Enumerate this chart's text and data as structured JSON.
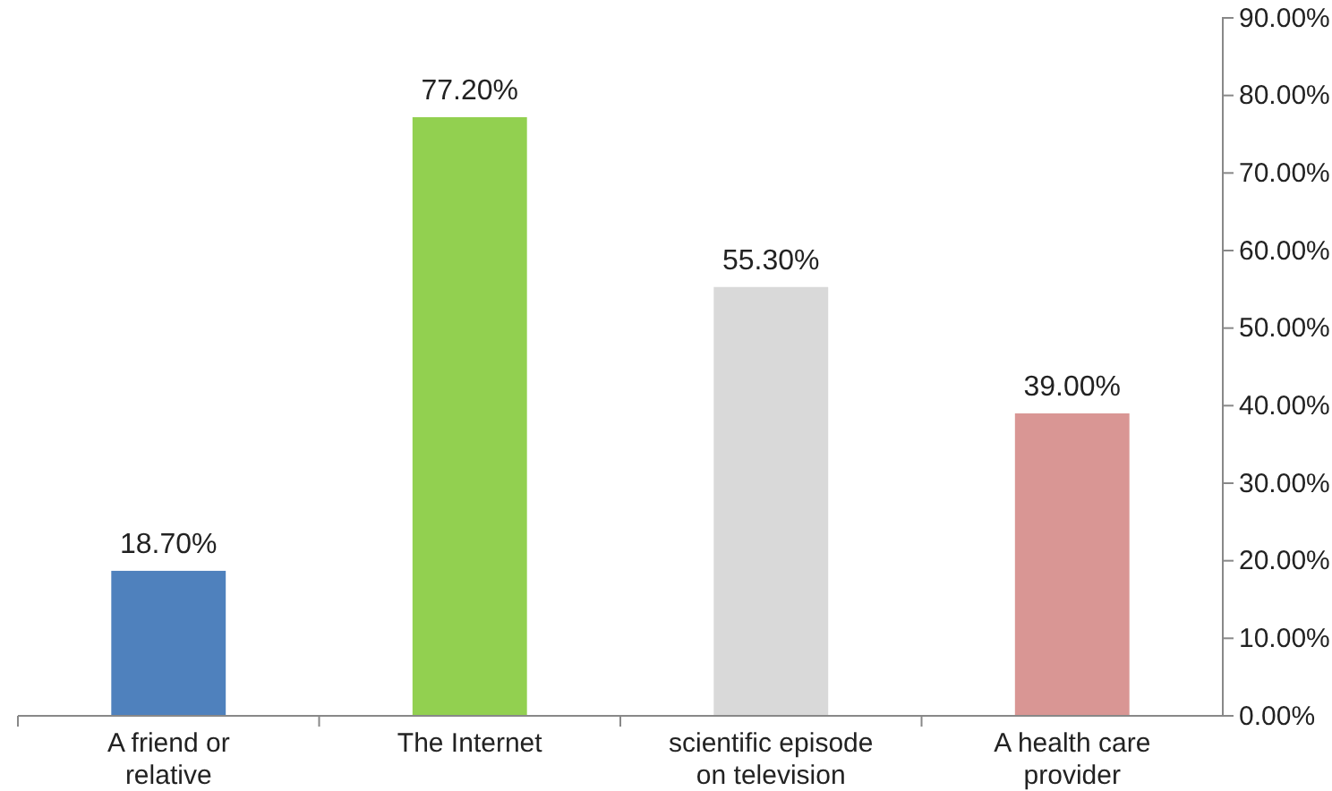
{
  "chart_data": {
    "type": "bar",
    "categories": [
      "A friend or relative",
      "The Internet",
      "scientific episode on television",
      "A health care provider"
    ],
    "values": [
      18.7,
      77.2,
      55.3,
      39.0
    ],
    "colors": [
      "#4f81bd",
      "#92d050",
      "#d9d9d9",
      "#d99694"
    ],
    "value_labels": [
      "18.70%",
      "77.20%",
      "55.30%",
      "39.00%"
    ],
    "ylim": [
      0,
      90
    ],
    "yticks": [
      {
        "value": 0,
        "label": "0.00%"
      },
      {
        "value": 10,
        "label": "10.00%"
      },
      {
        "value": 20,
        "label": "20.00%"
      },
      {
        "value": 30,
        "label": "30.00%"
      },
      {
        "value": 40,
        "label": "40.00%"
      },
      {
        "value": 50,
        "label": "50.00%"
      },
      {
        "value": 60,
        "label": "60.00%"
      },
      {
        "value": 70,
        "label": "70.00%"
      },
      {
        "value": 80,
        "label": "80.00%"
      },
      {
        "value": 90,
        "label": "90.00%"
      }
    ],
    "grid": false,
    "legend": false
  }
}
